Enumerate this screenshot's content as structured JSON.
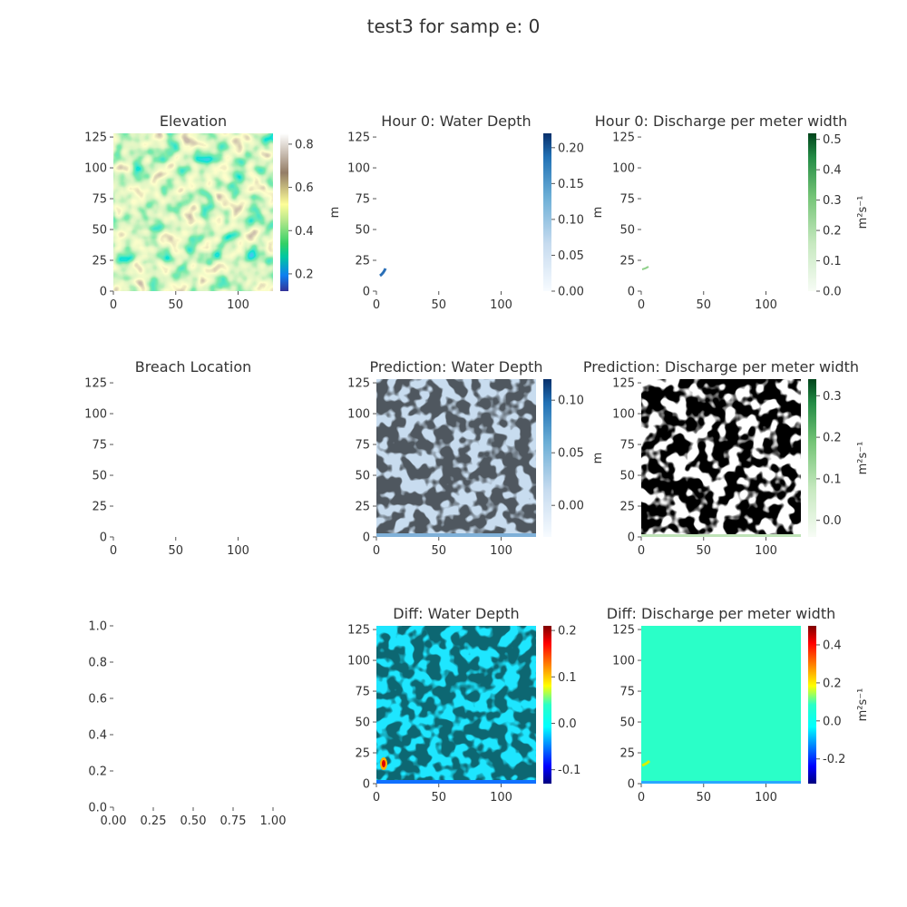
{
  "figure": {
    "suptitle": "test3 for samp e: 0"
  },
  "chart_data": [
    {
      "type": "heatmap",
      "title": "Elevation",
      "xticks": [
        "0",
        "50",
        "100"
      ],
      "yticks": [
        "0",
        "25",
        "50",
        "75",
        "100",
        "125"
      ],
      "xlim": [
        0,
        128
      ],
      "ylim": [
        0,
        128
      ],
      "colormap": "terrain",
      "colorbar": {
        "label": "m",
        "ticks": [
          "0.2",
          "0.4",
          "0.6",
          "0.8"
        ],
        "range": [
          0.12,
          0.85
        ]
      }
    },
    {
      "type": "heatmap",
      "title": "Hour 0: Water Depth",
      "xticks": [
        "0",
        "50",
        "100"
      ],
      "yticks": [
        "0",
        "25",
        "50",
        "75",
        "100",
        "125"
      ],
      "xlim": [
        0,
        128
      ],
      "ylim": [
        0,
        128
      ],
      "colormap": "Blues",
      "colorbar": {
        "label": "m",
        "ticks": [
          "0.00",
          "0.05",
          "0.10",
          "0.15",
          "0.20"
        ],
        "range": [
          0,
          0.22
        ]
      }
    },
    {
      "type": "heatmap",
      "title": "Hour 0: Discharge per meter width",
      "xticks": [
        "0",
        "50",
        "100"
      ],
      "yticks": [
        "0",
        "25",
        "50",
        "75",
        "100",
        "125"
      ],
      "xlim": [
        0,
        128
      ],
      "ylim": [
        0,
        128
      ],
      "colormap": "Greens",
      "colorbar": {
        "label": "m²s⁻¹",
        "ticks": [
          "0.0",
          "0.1",
          "0.2",
          "0.3",
          "0.4",
          "0.5"
        ],
        "range": [
          0,
          0.52
        ]
      }
    },
    {
      "type": "heatmap",
      "title": "Breach Location",
      "xticks": [
        "0",
        "50",
        "100"
      ],
      "yticks": [
        "0",
        "25",
        "50",
        "75",
        "100",
        "125"
      ],
      "xlim": [
        0,
        128
      ],
      "ylim": [
        0,
        128
      ]
    },
    {
      "type": "heatmap",
      "title": "Prediction: Water Depth",
      "xticks": [
        "0",
        "50",
        "100"
      ],
      "yticks": [
        "0",
        "25",
        "50",
        "75",
        "100",
        "125"
      ],
      "xlim": [
        0,
        128
      ],
      "ylim": [
        0,
        128
      ],
      "colormap": "Blues",
      "colorbar": {
        "label": "m",
        "ticks": [
          "0.00",
          "0.05",
          "0.10"
        ],
        "range": [
          -0.03,
          0.12
        ]
      }
    },
    {
      "type": "heatmap",
      "title": "Prediction: Discharge per meter width",
      "xticks": [
        "0",
        "50",
        "100"
      ],
      "yticks": [
        "0",
        "25",
        "50",
        "75",
        "100",
        "125"
      ],
      "xlim": [
        0,
        128
      ],
      "ylim": [
        0,
        128
      ],
      "colormap": "Greens",
      "colorbar": {
        "label": "m²s⁻¹",
        "ticks": [
          "0.0",
          "0.1",
          "0.2",
          "0.3"
        ],
        "range": [
          -0.04,
          0.34
        ]
      }
    },
    {
      "type": "scatter",
      "title": "",
      "xticks": [
        "0.00",
        "0.25",
        "0.50",
        "0.75",
        "1.00"
      ],
      "yticks": [
        "0.0",
        "0.2",
        "0.4",
        "0.6",
        "0.8",
        "1.0"
      ],
      "xlim": [
        0,
        1
      ],
      "ylim": [
        0,
        1
      ],
      "series": []
    },
    {
      "type": "heatmap",
      "title": "Diff: Water Depth",
      "xticks": [
        "0",
        "50",
        "100"
      ],
      "yticks": [
        "0",
        "25",
        "50",
        "75",
        "100",
        "125"
      ],
      "xlim": [
        0,
        128
      ],
      "ylim": [
        0,
        128
      ],
      "colormap": "jet",
      "colorbar": {
        "label": "",
        "ticks": [
          "-0.1",
          "0.0",
          "0.1",
          "0.2"
        ],
        "range": [
          -0.13,
          0.21
        ]
      }
    },
    {
      "type": "heatmap",
      "title": "Diff: Discharge per meter width",
      "xticks": [
        "0",
        "50",
        "100"
      ],
      "yticks": [
        "0",
        "25",
        "50",
        "75",
        "100",
        "125"
      ],
      "xlim": [
        0,
        128
      ],
      "ylim": [
        0,
        128
      ],
      "colormap": "jet",
      "colorbar": {
        "label": "m²s⁻¹",
        "ticks": [
          "-0.2",
          "0.0",
          "0.2",
          "0.4"
        ],
        "range": [
          -0.33,
          0.5
        ]
      }
    }
  ]
}
